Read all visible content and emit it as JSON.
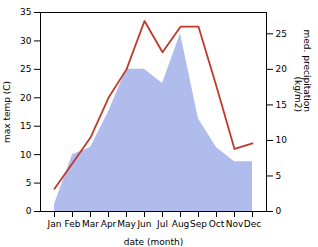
{
  "chart_data": {
    "type": "line",
    "xlabel": "date (month)",
    "ylabel": "max temp (C)",
    "y2label": "med. precipitation\n(kg/m2)",
    "categories": [
      "Jan",
      "Feb",
      "Mar",
      "Apr",
      "May",
      "Jun",
      "Jul",
      "Aug",
      "Sep",
      "Oct",
      "Nov",
      "Dec"
    ],
    "series": [
      {
        "type": "area",
        "color": "#b0bcec",
        "axis": "y2",
        "values": [
          1,
          8,
          9,
          14,
          20,
          20,
          18,
          25,
          13,
          9,
          7,
          7
        ]
      },
      {
        "type": "line",
        "color": "#c0392b",
        "values": [
          4,
          8.5,
          13,
          20,
          25,
          33.5,
          28,
          32.5,
          32.5,
          22,
          11,
          12
        ]
      }
    ],
    "ylim": [
      0,
      35
    ],
    "yticks": [
      0,
      5,
      10,
      15,
      20,
      25,
      30,
      35
    ],
    "y2lim": [
      0,
      28
    ],
    "y2ticks": [
      0,
      5,
      10,
      15,
      20,
      25
    ]
  }
}
